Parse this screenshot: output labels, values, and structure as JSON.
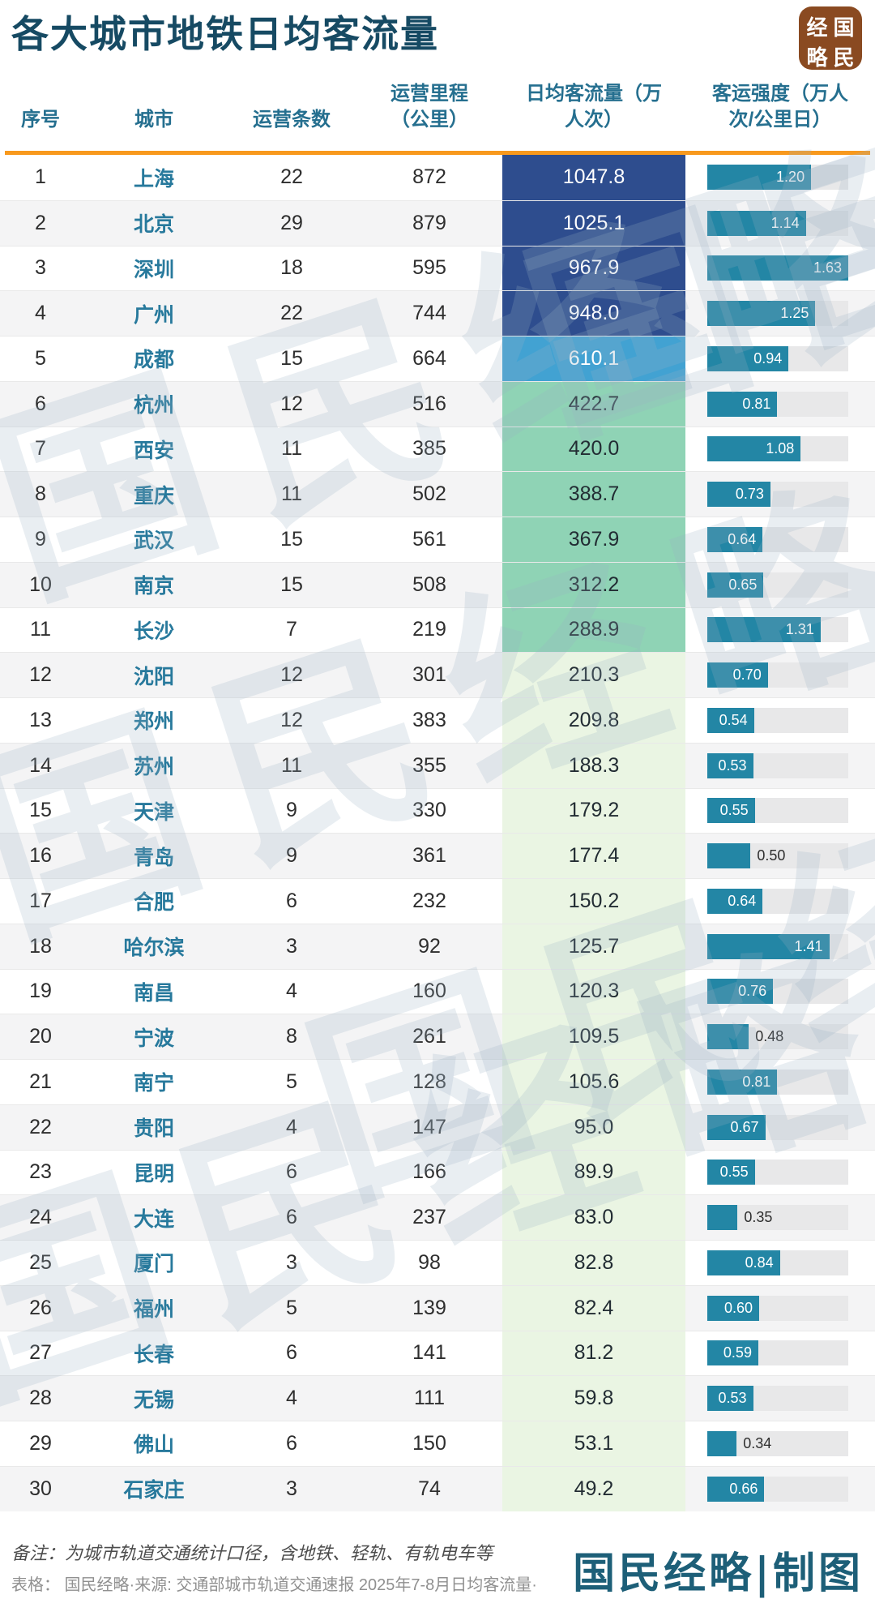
{
  "page": {
    "title": "各大城市地铁日均客流量",
    "logo": {
      "chars": [
        "经",
        "国",
        "略",
        "民"
      ],
      "bg_color": "#8a4a21"
    },
    "watermark_text": "国民经略",
    "note_line1": "备注：为城市轨道交通统计口径，含地铁、轻轨、有轨电车等",
    "note_line2": "表格： 国民经略·来源: 交通部城市轨道交通速报 2025年7-8月日均客流量·",
    "credit": "国民经略|制图",
    "accent_orange": "#f8991d",
    "title_color": "#164a63"
  },
  "table": {
    "headers": {
      "index": "序号",
      "city": "城市",
      "lines": "运营条数",
      "mileage_l1": "运营里程",
      "mileage_l2": "（公里）",
      "flow_l1": "日均客流量（万",
      "flow_l2": "人次）",
      "intensity_l1": "客运强度（万人",
      "intensity_l2": "次/公里日）"
    }
  },
  "chart_data": {
    "type": "table",
    "title": "各大城市地铁日均客流量",
    "columns": [
      "序号",
      "城市",
      "运营条数",
      "运营里程（公里）",
      "日均客流量（万人次）",
      "客运强度（万人次/公里日）"
    ],
    "rows": [
      [
        1,
        "上海",
        22,
        872,
        "1047.8",
        "1.20"
      ],
      [
        2,
        "北京",
        29,
        879,
        "1025.1",
        "1.14"
      ],
      [
        3,
        "深圳",
        18,
        595,
        "967.9",
        "1.63"
      ],
      [
        4,
        "广州",
        22,
        744,
        "948.0",
        "1.25"
      ],
      [
        5,
        "成都",
        15,
        664,
        "610.1",
        "0.94"
      ],
      [
        6,
        "杭州",
        12,
        516,
        "422.7",
        "0.81"
      ],
      [
        7,
        "西安",
        11,
        385,
        "420.0",
        "1.08"
      ],
      [
        8,
        "重庆",
        11,
        502,
        "388.7",
        "0.73"
      ],
      [
        9,
        "武汉",
        15,
        561,
        "367.9",
        "0.64"
      ],
      [
        10,
        "南京",
        15,
        508,
        "312.2",
        "0.65"
      ],
      [
        11,
        "长沙",
        7,
        219,
        "288.9",
        "1.31"
      ],
      [
        12,
        "沈阳",
        12,
        301,
        "210.3",
        "0.70"
      ],
      [
        13,
        "郑州",
        12,
        383,
        "209.8",
        "0.54"
      ],
      [
        14,
        "苏州",
        11,
        355,
        "188.3",
        "0.53"
      ],
      [
        15,
        "天津",
        9,
        330,
        "179.2",
        "0.55"
      ],
      [
        16,
        "青岛",
        9,
        361,
        "177.4",
        "0.50"
      ],
      [
        17,
        "合肥",
        6,
        232,
        "150.2",
        "0.64"
      ],
      [
        18,
        "哈尔滨",
        3,
        92,
        "125.7",
        "1.41"
      ],
      [
        19,
        "南昌",
        4,
        160,
        "120.3",
        "0.76"
      ],
      [
        20,
        "宁波",
        8,
        261,
        "109.5",
        "0.48"
      ],
      [
        21,
        "南宁",
        5,
        128,
        "105.6",
        "0.81"
      ],
      [
        22,
        "贵阳",
        4,
        147,
        "95.0",
        "0.67"
      ],
      [
        23,
        "昆明",
        6,
        166,
        "89.9",
        "0.55"
      ],
      [
        24,
        "大连",
        6,
        237,
        "83.0",
        "0.35"
      ],
      [
        25,
        "厦门",
        3,
        98,
        "82.8",
        "0.84"
      ],
      [
        26,
        "福州",
        5,
        139,
        "82.4",
        "0.60"
      ],
      [
        27,
        "长春",
        6,
        141,
        "81.2",
        "0.59"
      ],
      [
        28,
        "无锡",
        4,
        111,
        "59.8",
        "0.53"
      ],
      [
        29,
        "佛山",
        6,
        150,
        "53.1",
        "0.34"
      ],
      [
        30,
        "石家庄",
        3,
        74,
        "49.2",
        "0.66"
      ]
    ],
    "flow_color_scale": [
      {
        "min": 900,
        "bg": "#2e4d8e",
        "text": "#ffffff"
      },
      {
        "min": 500,
        "bg": "#42a2d2",
        "text": "#ffffff"
      },
      {
        "min": 250,
        "bg": "#8fd3b5",
        "text": "#222c33"
      },
      {
        "min": 0,
        "bg": "#eaf5e3",
        "text": "#222c33"
      }
    ],
    "intensity_bar": {
      "max": 1.63,
      "color": "#2386a5",
      "track_color": "#e8e8e9",
      "label_inside_min": 0.52
    }
  }
}
